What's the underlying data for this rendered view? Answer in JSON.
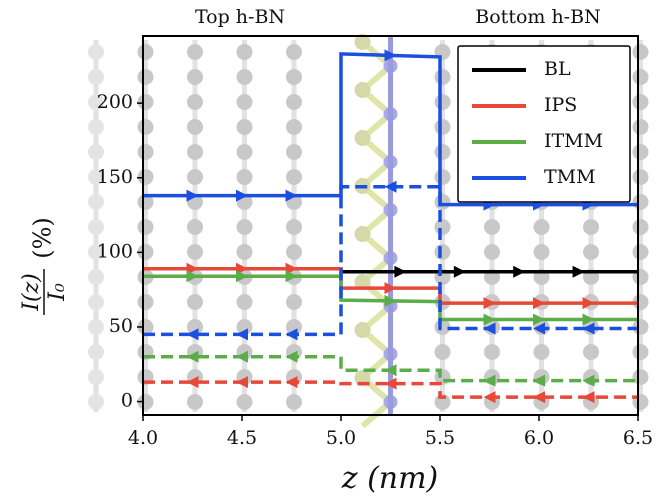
{
  "chart_data": {
    "type": "line",
    "top_labels": [
      "Top h-BN",
      "Bottom h-BN"
    ],
    "xlabel": "z (nm)",
    "ylabel": {
      "numerator": "I(z)",
      "denominator": "I₀",
      "unit": "(%)"
    },
    "xlim": [
      4.0,
      6.5
    ],
    "xticks": [
      {
        "value": 4.0,
        "label": "4.0"
      },
      {
        "value": 4.5,
        "label": "4.5"
      },
      {
        "value": 5.0,
        "label": "5.0"
      },
      {
        "value": 5.5,
        "label": "5.5"
      },
      {
        "value": 6.0,
        "label": "6.0"
      },
      {
        "value": 6.5,
        "label": "6.5"
      }
    ],
    "ylim": [
      -9,
      245
    ],
    "yticks": [
      0,
      50,
      100,
      150,
      200
    ],
    "legend": "upper right",
    "series": [
      {
        "name": "BL",
        "color": "#000000",
        "linestyle": "solid",
        "x": [
          5.0,
          6.5
        ],
        "values": [
          87,
          87
        ]
      },
      {
        "name": "IPS",
        "color": "#e8483a",
        "linestyle": "solid",
        "x": [
          4.0,
          5.0,
          5.0,
          5.5,
          5.5,
          6.5
        ],
        "values": [
          89,
          89,
          76,
          76,
          66,
          66
        ]
      },
      {
        "name": "ITMM",
        "color": "#5aad48",
        "linestyle": "solid",
        "x": [
          4.0,
          5.0,
          5.0,
          5.5,
          5.5,
          6.5
        ],
        "values": [
          84,
          84,
          68,
          67,
          55,
          55
        ]
      },
      {
        "name": "TMM",
        "color": "#1a4fe0",
        "linestyle": "solid",
        "x": [
          4.0,
          5.0,
          5.0,
          5.5,
          5.5,
          6.5
        ],
        "values": [
          138,
          138,
          233,
          231,
          132,
          132
        ]
      },
      {
        "color": "#1a4fe0",
        "linestyle": "dashed",
        "x": [
          4.0,
          5.0,
          5.0,
          5.5,
          5.5,
          6.5
        ],
        "values": [
          45,
          45,
          144,
          144,
          49,
          49
        ]
      },
      {
        "color": "#5aad48",
        "linestyle": "dashed",
        "x": [
          4.0,
          5.0,
          5.0,
          5.5,
          5.5,
          6.5
        ],
        "values": [
          30,
          30,
          21,
          21,
          14,
          14
        ]
      },
      {
        "color": "#e8483a",
        "linestyle": "dashed",
        "x": [
          4.0,
          5.0,
          5.0,
          5.5,
          5.5,
          6.5
        ],
        "values": [
          13,
          13,
          12,
          12,
          3,
          3
        ]
      }
    ]
  }
}
